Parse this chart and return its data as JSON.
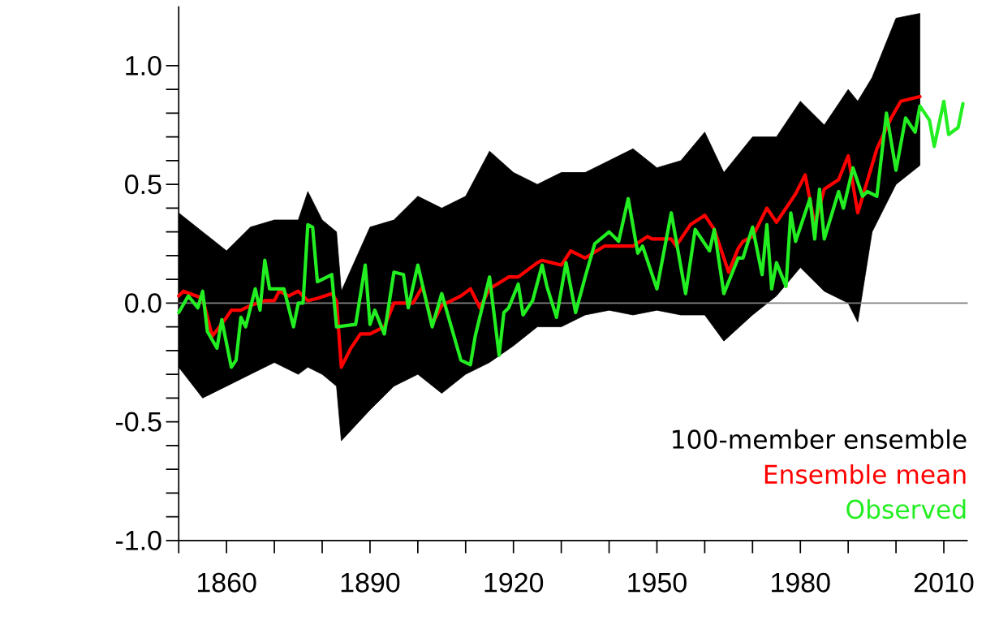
{
  "chart_data": {
    "type": "line",
    "xlim": [
      1850,
      2015
    ],
    "ylim": [
      -1,
      1.25
    ],
    "xticks": [
      {
        "value": 1850,
        "label": null
      },
      1860,
      {
        "value": 1870,
        "label": null
      },
      {
        "value": 1880,
        "label": null
      },
      1890,
      {
        "value": 1900,
        "label": null
      },
      {
        "value": 1910,
        "label": null
      },
      1920,
      {
        "value": 1930,
        "label": null
      },
      {
        "value": 1940,
        "label": null
      },
      1950,
      {
        "value": 1960,
        "label": null
      },
      {
        "value": 1970,
        "label": null
      },
      1980,
      {
        "value": 1990,
        "label": null
      },
      {
        "value": 2000,
        "label": null
      },
      2010
    ],
    "yticks": [
      {
        "value": -1,
        "label": "-1.0"
      },
      {
        "value": -0.9,
        "label": null
      },
      {
        "value": -0.8,
        "label": null
      },
      {
        "value": -0.7,
        "label": null
      },
      {
        "value": -0.6,
        "label": null
      },
      {
        "value": -0.5,
        "label": "-0.5"
      },
      {
        "value": -0.4,
        "label": null
      },
      {
        "value": -0.3,
        "label": null
      },
      {
        "value": -0.2,
        "label": null
      },
      {
        "value": -0.1,
        "label": null
      },
      {
        "value": 0,
        "label": "0.0"
      },
      {
        "value": 0.1,
        "label": null
      },
      {
        "value": 0.2,
        "label": null
      },
      {
        "value": 0.3,
        "label": null
      },
      {
        "value": 0.4,
        "label": null
      },
      {
        "value": 0.5,
        "label": "0.5"
      },
      {
        "value": 0.6,
        "label": null
      },
      {
        "value": 0.7,
        "label": null
      },
      {
        "value": 0.8,
        "label": null
      },
      {
        "value": 0.9,
        "label": null
      },
      {
        "value": 1,
        "label": "1.0"
      }
    ],
    "ref_lines": [
      {
        "axis": "y",
        "value": 0,
        "color": "#808080"
      }
    ],
    "legend": "bottom right",
    "series": [
      {
        "name": "100-member ensemble",
        "color": "#000000",
        "x": [
          1850,
          1855,
          1860,
          1865,
          1870,
          1875,
          1877,
          1880,
          1883,
          1884,
          1890,
          1895,
          1900,
          1905,
          1910,
          1915,
          1920,
          1925,
          1930,
          1935,
          1940,
          1945,
          1950,
          1955,
          1960,
          1964,
          1970,
          1975,
          1980,
          1985,
          1990,
          1992,
          1995,
          2000,
          2005
        ],
        "values": [
          null,
          null,
          null,
          null,
          null,
          null,
          null,
          null,
          null,
          null,
          null,
          null,
          null,
          null,
          null,
          null,
          null,
          null,
          null,
          null,
          null,
          null,
          null,
          null,
          null,
          null,
          null,
          null,
          null,
          null,
          null,
          null,
          null,
          null,
          null
        ],
        "upper": [
          0.38,
          0.3,
          0.22,
          0.32,
          0.35,
          0.35,
          0.47,
          0.35,
          0.3,
          0.05,
          0.32,
          0.35,
          0.45,
          0.4,
          0.45,
          0.64,
          0.55,
          0.5,
          0.55,
          0.55,
          0.6,
          0.65,
          0.57,
          0.6,
          0.72,
          0.55,
          0.7,
          0.7,
          0.85,
          0.75,
          0.9,
          0.85,
          0.95,
          1.2,
          1.22
        ],
        "lower": [
          -0.27,
          -0.4,
          -0.35,
          -0.3,
          -0.25,
          -0.3,
          -0.27,
          -0.3,
          -0.35,
          -0.58,
          -0.45,
          -0.35,
          -0.3,
          -0.38,
          -0.3,
          -0.25,
          -0.18,
          -0.1,
          -0.1,
          -0.05,
          -0.03,
          -0.05,
          -0.03,
          -0.05,
          -0.05,
          -0.16,
          -0.05,
          0.03,
          0.15,
          0.05,
          0.0,
          -0.08,
          0.3,
          0.5,
          0.58
        ]
      },
      {
        "name": "Ensemble mean",
        "color": "#ff0000",
        "x": [
          1850,
          1851,
          1855,
          1857,
          1860,
          1861,
          1863,
          1865,
          1868,
          1870,
          1871,
          1873,
          1875,
          1877,
          1879,
          1882,
          1883,
          1884,
          1886,
          1888,
          1890,
          1893,
          1895,
          1899,
          1901,
          1903,
          1905,
          1909,
          1911,
          1913,
          1915,
          1919,
          1921,
          1925,
          1926,
          1930,
          1932,
          1935,
          1939,
          1942,
          1945,
          1948,
          1949,
          1953,
          1954,
          1957,
          1960,
          1962,
          1965,
          1967,
          1968,
          1970,
          1973,
          1975,
          1979,
          1981,
          1983,
          1985,
          1988,
          1990,
          1992,
          1996,
          1999,
          2001,
          2005
        ],
        "values": [
          0.03,
          0.05,
          0.02,
          -0.14,
          -0.06,
          -0.03,
          -0.03,
          -0.01,
          0.01,
          0.01,
          0.05,
          0.03,
          0.05,
          0.01,
          0.02,
          0.04,
          0.01,
          -0.27,
          -0.19,
          -0.13,
          -0.13,
          -0.1,
          0.0,
          0.0,
          0.07,
          -0.09,
          -0.01,
          0.03,
          0.06,
          -0.02,
          0.06,
          0.11,
          0.11,
          0.17,
          0.18,
          0.16,
          0.22,
          0.19,
          0.24,
          0.24,
          0.24,
          0.28,
          0.27,
          0.27,
          0.24,
          0.33,
          0.37,
          0.31,
          0.13,
          0.23,
          0.26,
          0.28,
          0.4,
          0.34,
          0.46,
          0.54,
          0.33,
          0.48,
          0.52,
          0.62,
          0.38,
          0.65,
          0.78,
          0.85,
          0.87
        ]
      },
      {
        "name": "Observed",
        "color": "#22ee22",
        "x": [
          1850,
          1852,
          1854,
          1855,
          1856,
          1858,
          1859,
          1861,
          1862,
          1863,
          1864,
          1866,
          1867,
          1868,
          1869,
          1872,
          1874,
          1875,
          1876,
          1877,
          1878,
          1879,
          1882,
          1883,
          1887,
          1889,
          1890,
          1891,
          1893,
          1895,
          1897,
          1898,
          1900,
          1903,
          1905,
          1909,
          1911,
          1912,
          1915,
          1917,
          1918,
          1919,
          1921,
          1922,
          1924,
          1926,
          1927,
          1929,
          1931,
          1933,
          1935,
          1937,
          1940,
          1942,
          1944,
          1946,
          1947,
          1950,
          1953,
          1956,
          1958,
          1961,
          1962,
          1964,
          1967,
          1968,
          1970,
          1972,
          1973,
          1974,
          1975,
          1977,
          1978,
          1979,
          1982,
          1983,
          1984,
          1985,
          1988,
          1989,
          1991,
          1993,
          1994,
          1996,
          1998,
          2000,
          2002,
          2004,
          2005,
          2007,
          2008,
          2010,
          2011,
          2013,
          2014
        ],
        "values": [
          -0.04,
          0.03,
          -0.02,
          0.05,
          -0.12,
          -0.19,
          -0.07,
          -0.27,
          -0.24,
          -0.06,
          -0.1,
          0.06,
          -0.03,
          0.18,
          0.06,
          0.06,
          -0.1,
          0.0,
          0.0,
          0.33,
          0.32,
          0.09,
          0.12,
          -0.1,
          -0.09,
          0.16,
          -0.09,
          -0.03,
          -0.13,
          0.13,
          0.12,
          -0.02,
          0.16,
          -0.1,
          0.04,
          -0.24,
          -0.26,
          -0.14,
          0.11,
          -0.22,
          -0.04,
          -0.02,
          0.08,
          -0.05,
          0.01,
          0.16,
          0.07,
          -0.06,
          0.17,
          -0.04,
          0.11,
          0.25,
          0.3,
          0.26,
          0.44,
          0.21,
          0.24,
          0.06,
          0.38,
          0.04,
          0.31,
          0.22,
          0.31,
          0.04,
          0.19,
          0.19,
          0.32,
          0.12,
          0.33,
          0.06,
          0.17,
          0.07,
          0.38,
          0.26,
          0.44,
          0.27,
          0.48,
          0.27,
          0.47,
          0.4,
          0.57,
          0.45,
          0.47,
          0.45,
          0.8,
          0.56,
          0.78,
          0.72,
          0.83,
          0.77,
          0.66,
          0.85,
          0.71,
          0.74,
          0.84
        ]
      }
    ]
  }
}
